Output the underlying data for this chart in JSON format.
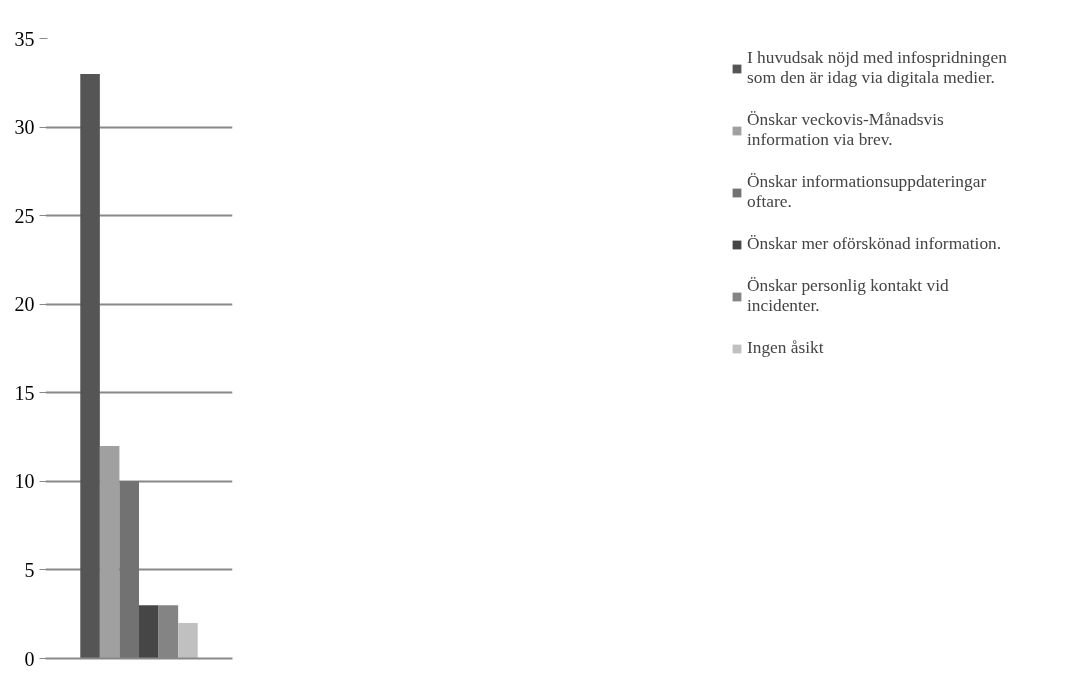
{
  "chart_data": {
    "type": "bar",
    "categories": [
      null
    ],
    "series": [
      {
        "name": "I huvudsak nöjd med infospridningen som den är idag via digitala medier.",
        "color": "#555555",
        "values": [
          33
        ]
      },
      {
        "name": "Önskar veckovis-Månadsvis information via brev.",
        "color": "#a0a0a0",
        "values": [
          12
        ]
      },
      {
        "name": "Önskar informationsuppdateringar oftare.",
        "color": "#727272",
        "values": [
          10
        ]
      },
      {
        "name": "Önskar mer oförskönad information.",
        "color": "#464646",
        "values": [
          3
        ]
      },
      {
        "name": "Önskar personlig kontakt vid incidenter.",
        "color": "#848484",
        "values": [
          3
        ]
      },
      {
        "name": "Ingen åsikt",
        "color": "#c0c0c0",
        "values": [
          2
        ]
      }
    ],
    "ylim": [
      0,
      35
    ],
    "yticks": [
      0,
      5,
      10,
      15,
      20,
      25,
      30,
      35
    ],
    "grid": "y",
    "legend": "right"
  }
}
